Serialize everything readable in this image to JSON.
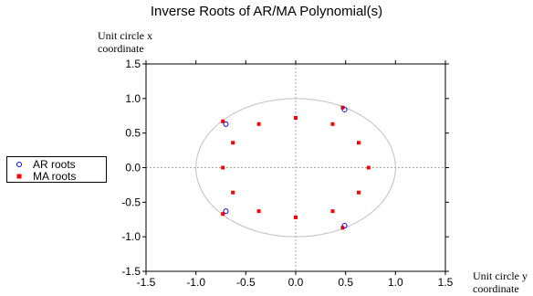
{
  "chart_data": {
    "type": "scatter",
    "title": "Inverse Roots of AR/MA Polynomial(s)",
    "xlabel": "Unit circle y coordinate",
    "ylabel": "Unit circle x coordinate",
    "xlim": [
      -1.5,
      1.5
    ],
    "ylim": [
      -1.5,
      1.5
    ],
    "x_ticks": [
      -1.5,
      -1.0,
      -0.5,
      0.0,
      0.5,
      1.0,
      1.5
    ],
    "y_ticks": [
      -1.5,
      -1.0,
      -0.5,
      0.0,
      0.5,
      1.0,
      1.5
    ],
    "x_tick_labels": [
      "-1.5",
      "-1.0",
      "-0.5",
      "0.0",
      "0.5",
      "1.0",
      "1.5"
    ],
    "y_tick_labels": [
      "-1.5",
      "-1.0",
      "-0.5",
      "0.0",
      "0.5",
      "1.0",
      "1.5"
    ],
    "unit_circle": true,
    "zero_lines": true,
    "legend_position": "left",
    "series": [
      {
        "name": "AR roots",
        "marker": "open-circle",
        "color": "#0000ff",
        "points": [
          {
            "x": 0.49,
            "y": 0.84
          },
          {
            "x": 0.49,
            "y": -0.84
          },
          {
            "x": -0.7,
            "y": 0.63
          },
          {
            "x": -0.7,
            "y": -0.63
          }
        ]
      },
      {
        "name": "MA roots",
        "marker": "filled-square",
        "color": "#ff0000",
        "points": [
          {
            "x": 0.0,
            "y": 0.72
          },
          {
            "x": 0.0,
            "y": -0.72
          },
          {
            "x": 0.37,
            "y": 0.63
          },
          {
            "x": 0.37,
            "y": -0.63
          },
          {
            "x": -0.37,
            "y": 0.63
          },
          {
            "x": -0.37,
            "y": -0.63
          },
          {
            "x": 0.63,
            "y": 0.36
          },
          {
            "x": 0.63,
            "y": -0.36
          },
          {
            "x": -0.63,
            "y": 0.36
          },
          {
            "x": -0.63,
            "y": -0.36
          },
          {
            "x": 0.73,
            "y": 0.0
          },
          {
            "x": -0.73,
            "y": 0.0
          },
          {
            "x": 0.47,
            "y": 0.87
          },
          {
            "x": 0.47,
            "y": -0.87
          },
          {
            "x": -0.73,
            "y": 0.67
          },
          {
            "x": -0.73,
            "y": -0.67
          }
        ]
      }
    ]
  },
  "colors": {
    "circle": "#c0c0c0",
    "zero_line": "#a8a8a8",
    "axis": "#000000"
  }
}
